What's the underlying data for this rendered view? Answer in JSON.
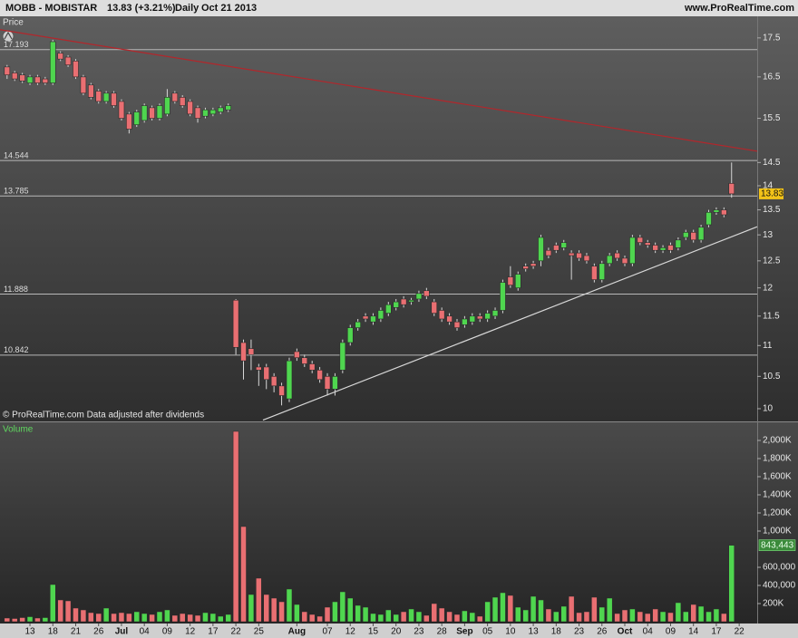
{
  "chart_data": {
    "type": "candlestick",
    "title": "MOBB - MOBISTAR",
    "last_label": "13.83 (+3.21%)",
    "period": "Daily",
    "date": "Oct 21 2013",
    "source": "www.ProRealTime.com",
    "price_label": "Price",
    "footer": "© ProRealTime.com  Data adjusted after dividends",
    "log_scale": true,
    "ylim": [
      9.81,
      18.08
    ],
    "yticks": [
      10,
      10.5,
      11,
      11.5,
      12,
      12.5,
      13,
      13.5,
      14,
      14.5,
      15.5,
      16.5,
      17.5
    ],
    "up_color": "#4fd64f",
    "down_color": "#e96f72",
    "last_price": 13.83,
    "levels": [
      17.193,
      14.544,
      13.785,
      11.888,
      10.842
    ],
    "trendlines": [
      {
        "color": "#b3262b",
        "points": [
          [
            -0.93,
            17.72
          ],
          [
            98.36,
            14.75
          ]
        ]
      },
      {
        "color": "#d8d8d8",
        "points": [
          [
            33.55,
            9.83
          ],
          [
            98.36,
            13.16
          ]
        ]
      }
    ],
    "categories": [
      null,
      null,
      null,
      "13",
      null,
      null,
      "18",
      null,
      null,
      "21",
      null,
      null,
      "26",
      null,
      null,
      "Jul",
      null,
      null,
      "04",
      null,
      null,
      "09",
      null,
      null,
      "12",
      null,
      null,
      "17",
      null,
      null,
      "22",
      null,
      null,
      "25",
      null,
      null,
      null,
      null,
      "Aug",
      null,
      null,
      null,
      "07",
      null,
      null,
      "12",
      null,
      null,
      "15",
      null,
      null,
      "20",
      null,
      null,
      "23",
      null,
      null,
      "28",
      null,
      null,
      "Sep",
      null,
      null,
      "05",
      null,
      null,
      "10",
      null,
      null,
      "13",
      null,
      null,
      "18",
      null,
      null,
      "23",
      null,
      null,
      "26",
      null,
      null,
      "Oct",
      null,
      null,
      "04",
      null,
      null,
      "09",
      null,
      null,
      "14",
      null,
      null,
      "17",
      null,
      null,
      "22"
    ],
    "open": [
      16.75,
      16.6,
      16.55,
      16.35,
      16.5,
      16.45,
      16.35,
      17.1,
      17.0,
      16.9,
      16.5,
      16.3,
      16.15,
      15.9,
      16.1,
      15.9,
      15.6,
      15.35,
      15.45,
      15.75,
      15.5,
      15.6,
      16.1,
      16.0,
      15.9,
      15.75,
      15.55,
      15.6,
      15.65,
      15.7,
      11.78,
      11.05,
      10.95,
      10.65,
      10.65,
      10.5,
      10.35,
      10.15,
      10.9,
      10.8,
      10.7,
      10.6,
      10.5,
      10.3,
      10.6,
      11.05,
      11.3,
      11.5,
      11.4,
      11.45,
      11.55,
      11.65,
      11.8,
      11.75,
      11.8,
      11.95,
      11.75,
      11.6,
      11.5,
      11.4,
      11.35,
      11.4,
      11.5,
      11.45,
      11.5,
      11.6,
      12.2,
      12.0,
      12.4,
      12.45,
      12.5,
      12.7,
      12.8,
      12.75,
      12.65,
      12.65,
      12.6,
      12.4,
      12.15,
      12.45,
      12.65,
      12.55,
      12.45,
      12.95,
      12.85,
      12.8,
      12.7,
      12.8,
      12.75,
      12.95,
      13.05,
      12.9,
      13.2,
      13.45,
      13.5,
      14.05,
      null
    ],
    "high": [
      16.8,
      16.65,
      16.6,
      16.55,
      16.55,
      16.5,
      17.45,
      17.15,
      17.05,
      16.95,
      16.55,
      16.35,
      16.2,
      16.15,
      16.15,
      15.95,
      15.65,
      15.7,
      15.85,
      15.8,
      15.85,
      16.2,
      16.15,
      16.05,
      15.95,
      15.8,
      15.75,
      15.75,
      15.8,
      15.85,
      11.8,
      11.1,
      11.1,
      10.7,
      10.7,
      10.55,
      10.4,
      10.8,
      10.95,
      10.85,
      10.75,
      10.65,
      10.55,
      10.55,
      11.1,
      11.35,
      11.45,
      11.55,
      11.55,
      11.65,
      11.75,
      11.8,
      11.85,
      11.82,
      11.95,
      12.0,
      11.8,
      11.65,
      11.55,
      11.45,
      11.5,
      11.55,
      11.55,
      11.6,
      11.65,
      12.15,
      12.4,
      12.3,
      12.45,
      12.5,
      13.0,
      12.75,
      12.85,
      12.9,
      12.7,
      12.7,
      12.65,
      12.45,
      12.5,
      12.65,
      12.7,
      12.6,
      13.0,
      13.0,
      12.9,
      12.85,
      12.8,
      12.85,
      12.95,
      13.1,
      13.1,
      13.2,
      13.5,
      13.55,
      13.55,
      14.5,
      null
    ],
    "low": [
      16.45,
      16.4,
      16.35,
      16.3,
      16.3,
      16.3,
      16.3,
      16.9,
      16.75,
      16.45,
      16.05,
      15.95,
      15.85,
      15.85,
      15.75,
      15.45,
      15.15,
      15.3,
      15.4,
      15.45,
      15.45,
      15.55,
      15.85,
      15.75,
      15.55,
      15.4,
      15.5,
      15.55,
      15.6,
      15.65,
      10.85,
      10.45,
      10.6,
      10.35,
      10.3,
      10.25,
      10.05,
      10.1,
      10.75,
      10.65,
      10.55,
      10.4,
      10.2,
      10.2,
      10.55,
      11.0,
      11.25,
      11.4,
      11.35,
      11.4,
      11.5,
      11.6,
      11.65,
      11.7,
      11.75,
      11.8,
      11.5,
      11.4,
      11.35,
      11.25,
      11.3,
      11.35,
      11.4,
      11.4,
      11.45,
      11.55,
      12.0,
      11.95,
      12.3,
      12.35,
      12.4,
      12.55,
      12.65,
      12.7,
      12.15,
      12.5,
      12.45,
      12.1,
      12.1,
      12.4,
      12.5,
      12.4,
      12.4,
      12.8,
      12.75,
      12.65,
      12.65,
      12.65,
      12.7,
      12.9,
      12.85,
      12.85,
      13.15,
      13.4,
      13.35,
      13.75,
      null
    ],
    "close": [
      16.55,
      16.45,
      16.4,
      16.5,
      16.35,
      16.35,
      17.4,
      16.95,
      16.8,
      16.5,
      16.1,
      16.0,
      15.9,
      16.1,
      15.8,
      15.5,
      15.25,
      15.65,
      15.8,
      15.5,
      15.8,
      16.0,
      15.9,
      15.8,
      15.6,
      15.5,
      15.7,
      15.7,
      15.75,
      15.8,
      10.97,
      10.75,
      10.85,
      10.6,
      10.45,
      10.35,
      10.2,
      10.75,
      10.8,
      10.7,
      10.6,
      10.45,
      10.3,
      10.5,
      11.05,
      11.3,
      11.4,
      11.45,
      11.5,
      11.6,
      11.7,
      11.75,
      11.7,
      11.78,
      11.9,
      11.85,
      11.55,
      11.45,
      11.4,
      11.3,
      11.45,
      11.5,
      11.45,
      11.55,
      11.6,
      12.1,
      12.05,
      12.25,
      12.35,
      12.4,
      12.95,
      12.6,
      12.7,
      12.85,
      12.6,
      12.55,
      12.5,
      12.15,
      12.45,
      12.6,
      12.55,
      12.45,
      12.95,
      12.85,
      12.8,
      12.7,
      12.75,
      12.7,
      12.9,
      13.05,
      12.9,
      13.15,
      13.45,
      13.5,
      13.4,
      13.83,
      null
    ],
    "volume": {
      "label": "Volume",
      "ylim": [
        0,
        2200000
      ],
      "yticks": [
        {
          "value": 200000,
          "label": "200K"
        },
        {
          "value": 400000,
          "label": "400,000"
        },
        {
          "value": 600000,
          "label": "600,000"
        },
        {
          "value": 1000000,
          "label": "1,000K"
        },
        {
          "value": 1200000,
          "label": "1,200K"
        },
        {
          "value": 1400000,
          "label": "1,400K"
        },
        {
          "value": 1600000,
          "label": "1,600K"
        },
        {
          "value": 1800000,
          "label": "1,800K"
        },
        {
          "value": 2000000,
          "label": "2,000K"
        }
      ],
      "values": [
        40000,
        35000,
        45000,
        55000,
        40000,
        45000,
        410000,
        240000,
        230000,
        150000,
        130000,
        100000,
        90000,
        150000,
        90000,
        100000,
        90000,
        110000,
        90000,
        80000,
        110000,
        130000,
        70000,
        90000,
        80000,
        70000,
        100000,
        90000,
        60000,
        80000,
        2100000,
        1050000,
        300000,
        480000,
        300000,
        260000,
        220000,
        360000,
        190000,
        110000,
        80000,
        60000,
        160000,
        220000,
        330000,
        260000,
        180000,
        160000,
        90000,
        80000,
        130000,
        80000,
        110000,
        140000,
        110000,
        70000,
        200000,
        150000,
        110000,
        80000,
        120000,
        100000,
        60000,
        220000,
        270000,
        320000,
        290000,
        160000,
        130000,
        280000,
        240000,
        140000,
        110000,
        170000,
        280000,
        100000,
        110000,
        270000,
        160000,
        260000,
        90000,
        130000,
        140000,
        110000,
        90000,
        140000,
        110000,
        100000,
        210000,
        110000,
        190000,
        170000,
        110000,
        140000,
        90000,
        843443,
        null
      ],
      "value_labels": [
        null,
        null,
        null,
        null,
        null,
        null,
        null,
        null,
        null,
        null,
        null,
        null,
        null,
        null,
        null,
        null,
        null,
        null,
        null,
        null,
        null,
        null,
        null,
        null,
        null,
        null,
        null,
        null,
        null,
        null,
        null,
        null,
        null,
        null,
        null,
        null,
        null,
        null,
        null,
        null,
        null,
        null,
        null,
        null,
        null,
        null,
        null,
        null,
        null,
        null,
        null,
        null,
        null,
        null,
        null,
        null,
        null,
        null,
        null,
        null,
        null,
        null,
        null,
        null,
        null,
        null,
        null,
        null,
        null,
        null,
        null,
        null,
        null,
        null,
        null,
        null,
        null,
        null,
        null,
        null,
        null,
        null,
        null,
        null,
        null,
        null,
        null,
        null,
        null,
        null,
        null,
        null,
        null,
        null,
        null,
        "843,443",
        null
      ]
    }
  }
}
